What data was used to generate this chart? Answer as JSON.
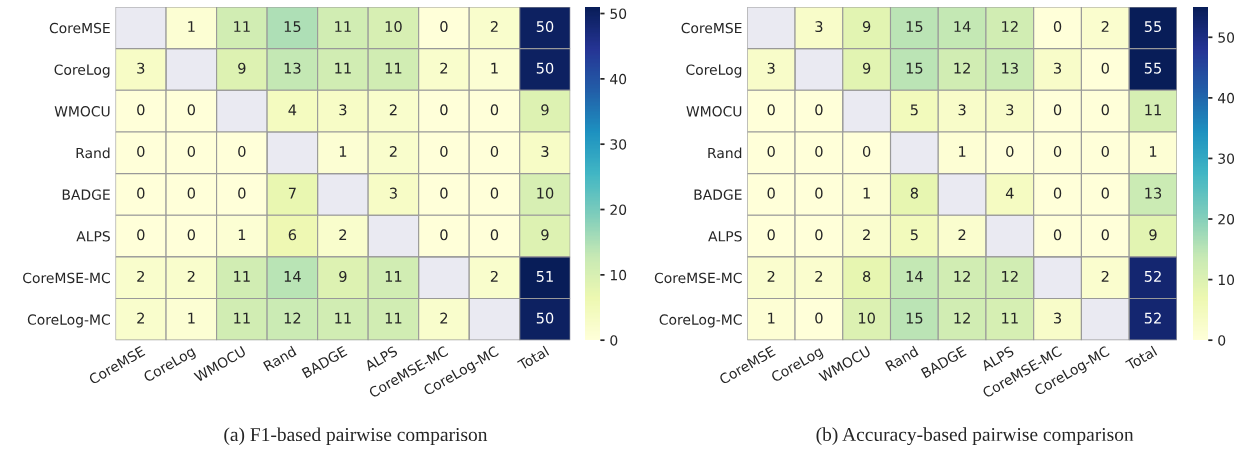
{
  "chart_data": [
    {
      "type": "heatmap",
      "categories": [
        "CoreMSE",
        "CoreLog",
        "WMOCU",
        "Rand",
        "BADGE",
        "ALPS",
        "CoreMSE-MC",
        "CoreLog-MC",
        "Total"
      ],
      "y_categories": [
        "CoreMSE",
        "CoreLog",
        "WMOCU",
        "Rand",
        "BADGE",
        "ALPS",
        "CoreMSE-MC",
        "CoreLog-MC"
      ],
      "cells": [
        [
          null,
          1,
          11,
          15,
          11,
          10,
          0,
          2,
          50
        ],
        [
          3,
          null,
          9,
          13,
          11,
          11,
          2,
          1,
          50
        ],
        [
          0,
          0,
          null,
          4,
          3,
          2,
          0,
          0,
          9
        ],
        [
          0,
          0,
          0,
          null,
          1,
          2,
          0,
          0,
          3
        ],
        [
          0,
          0,
          0,
          7,
          null,
          3,
          0,
          0,
          10
        ],
        [
          0,
          0,
          1,
          6,
          2,
          null,
          0,
          0,
          9
        ],
        [
          2,
          2,
          11,
          14,
          9,
          11,
          null,
          2,
          51
        ],
        [
          2,
          1,
          11,
          12,
          11,
          11,
          2,
          null,
          50
        ]
      ],
      "clim": [
        0,
        51
      ],
      "cticks": [
        0,
        10,
        20,
        30,
        40,
        50
      ],
      "data_labels": true,
      "annotations": [
        "(a) F1-based pairwise comparison"
      ]
    },
    {
      "type": "heatmap",
      "categories": [
        "CoreMSE",
        "CoreLog",
        "WMOCU",
        "Rand",
        "BADGE",
        "ALPS",
        "CoreMSE-MC",
        "CoreLog-MC",
        "Total"
      ],
      "y_categories": [
        "CoreMSE",
        "CoreLog",
        "WMOCU",
        "Rand",
        "BADGE",
        "ALPS",
        "CoreMSE-MC",
        "CoreLog-MC"
      ],
      "cells": [
        [
          null,
          3,
          9,
          15,
          14,
          12,
          0,
          2,
          55
        ],
        [
          3,
          null,
          9,
          15,
          12,
          13,
          3,
          0,
          55
        ],
        [
          0,
          0,
          null,
          5,
          3,
          3,
          0,
          0,
          11
        ],
        [
          0,
          0,
          0,
          null,
          1,
          0,
          0,
          0,
          1
        ],
        [
          0,
          0,
          1,
          8,
          null,
          4,
          0,
          0,
          13
        ],
        [
          0,
          0,
          2,
          5,
          2,
          null,
          0,
          0,
          9
        ],
        [
          2,
          2,
          8,
          14,
          12,
          12,
          null,
          2,
          52
        ],
        [
          1,
          0,
          10,
          15,
          12,
          11,
          3,
          null,
          52
        ]
      ],
      "clim": [
        0,
        55
      ],
      "cticks": [
        0,
        10,
        20,
        30,
        40,
        50
      ],
      "data_labels": true,
      "annotations": [
        "(b) Accuracy-based pairwise comparison"
      ]
    }
  ]
}
